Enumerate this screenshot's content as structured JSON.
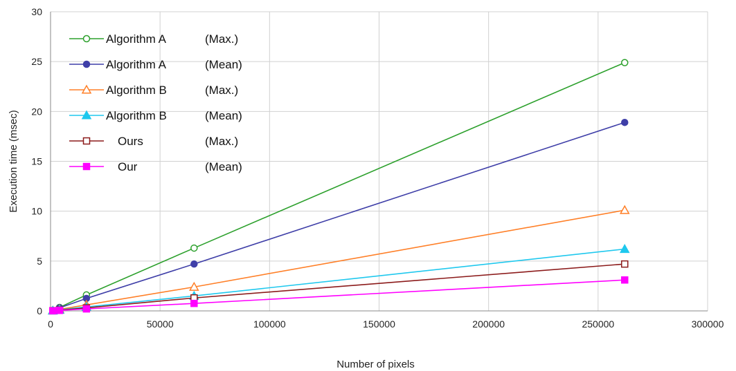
{
  "chart_data": {
    "type": "line",
    "xlabel": "Number of pixels",
    "ylabel": "Execution time (msec)",
    "xlim": [
      0,
      300000
    ],
    "ylim": [
      0,
      30
    ],
    "x_ticks": [
      "0",
      "50000",
      "100000",
      "150000",
      "200000",
      "250000",
      "300000"
    ],
    "y_ticks": [
      "0",
      "5",
      "10",
      "15",
      "20",
      "25",
      "30"
    ],
    "grid": true,
    "legend_position": "top-left",
    "x": [
      1024,
      4096,
      16384,
      65536,
      262144
    ],
    "series": [
      {
        "name": "Algorithm A",
        "stat": "(Max.)",
        "color": "#2ca02c",
        "marker": "circle-open",
        "values": [
          0.05,
          0.35,
          1.6,
          6.3,
          24.9
        ]
      },
      {
        "name": "Algorithm A",
        "stat": "(Mean)",
        "color": "#3f3fa8",
        "marker": "circle-filled",
        "values": [
          0.04,
          0.3,
          1.25,
          4.7,
          18.9
        ]
      },
      {
        "name": "Algorithm B",
        "stat": "(Max.)",
        "color": "#ff7f27",
        "marker": "triangle-open",
        "values": [
          0.03,
          0.15,
          0.6,
          2.4,
          10.1
        ]
      },
      {
        "name": "Algorithm B",
        "stat": "(Mean)",
        "color": "#1ec8ee",
        "marker": "triangle-filled",
        "values": [
          0.02,
          0.1,
          0.4,
          1.5,
          6.2
        ]
      },
      {
        "name": "Ours",
        "stat": "(Max.)",
        "color": "#8b1a1a",
        "marker": "square-open",
        "values": [
          0.02,
          0.08,
          0.3,
          1.3,
          4.7
        ]
      },
      {
        "name": "Our",
        "stat": "(Mean)",
        "color": "#ff00ff",
        "marker": "square-filled",
        "values": [
          0.01,
          0.05,
          0.2,
          0.75,
          3.1
        ]
      }
    ]
  }
}
